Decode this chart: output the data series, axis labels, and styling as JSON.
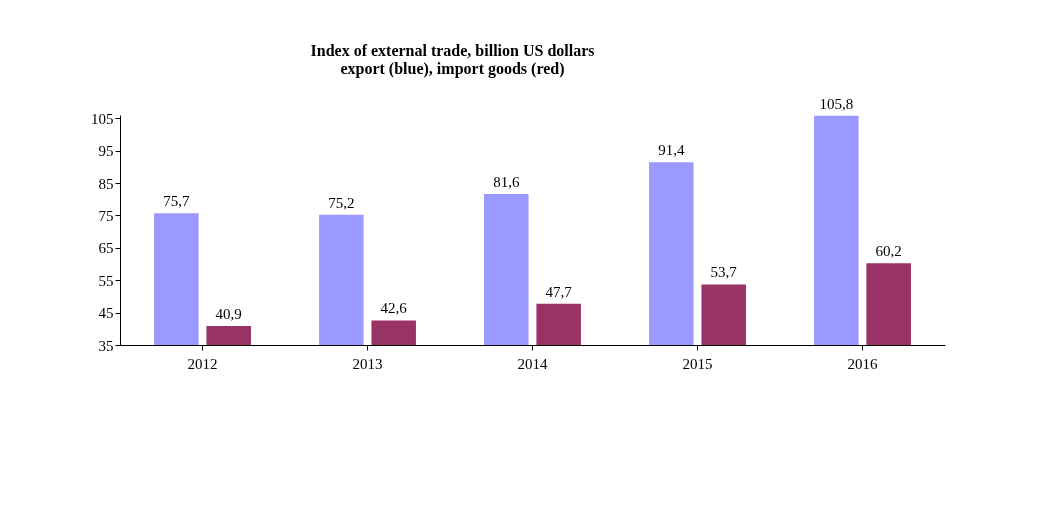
{
  "chart_data": {
    "type": "bar",
    "title": "Index of external trade, billion  US dollars",
    "subtitle": "export (blue), import  goods (red)",
    "categories": [
      "2012",
      "2013",
      "2014",
      "2015",
      "2016"
    ],
    "series": [
      {
        "color": "#9999ff",
        "values": [
          75.7,
          75.2,
          81.6,
          91.4,
          105.8
        ],
        "value_labels": [
          "75,7",
          "75,2",
          "81,6",
          "91,4",
          "105,8"
        ]
      },
      {
        "color": "#993366",
        "values": [
          40.9,
          42.6,
          47.7,
          53.7,
          60.2
        ],
        "value_labels": [
          "40,9",
          "42,6",
          "47,7",
          "53,7",
          "60,2"
        ]
      }
    ],
    "ylim": [
      35,
      106
    ],
    "yticks": [
      35,
      45,
      55,
      65,
      75,
      85,
      95,
      105
    ],
    "grid": false,
    "legend": false
  }
}
